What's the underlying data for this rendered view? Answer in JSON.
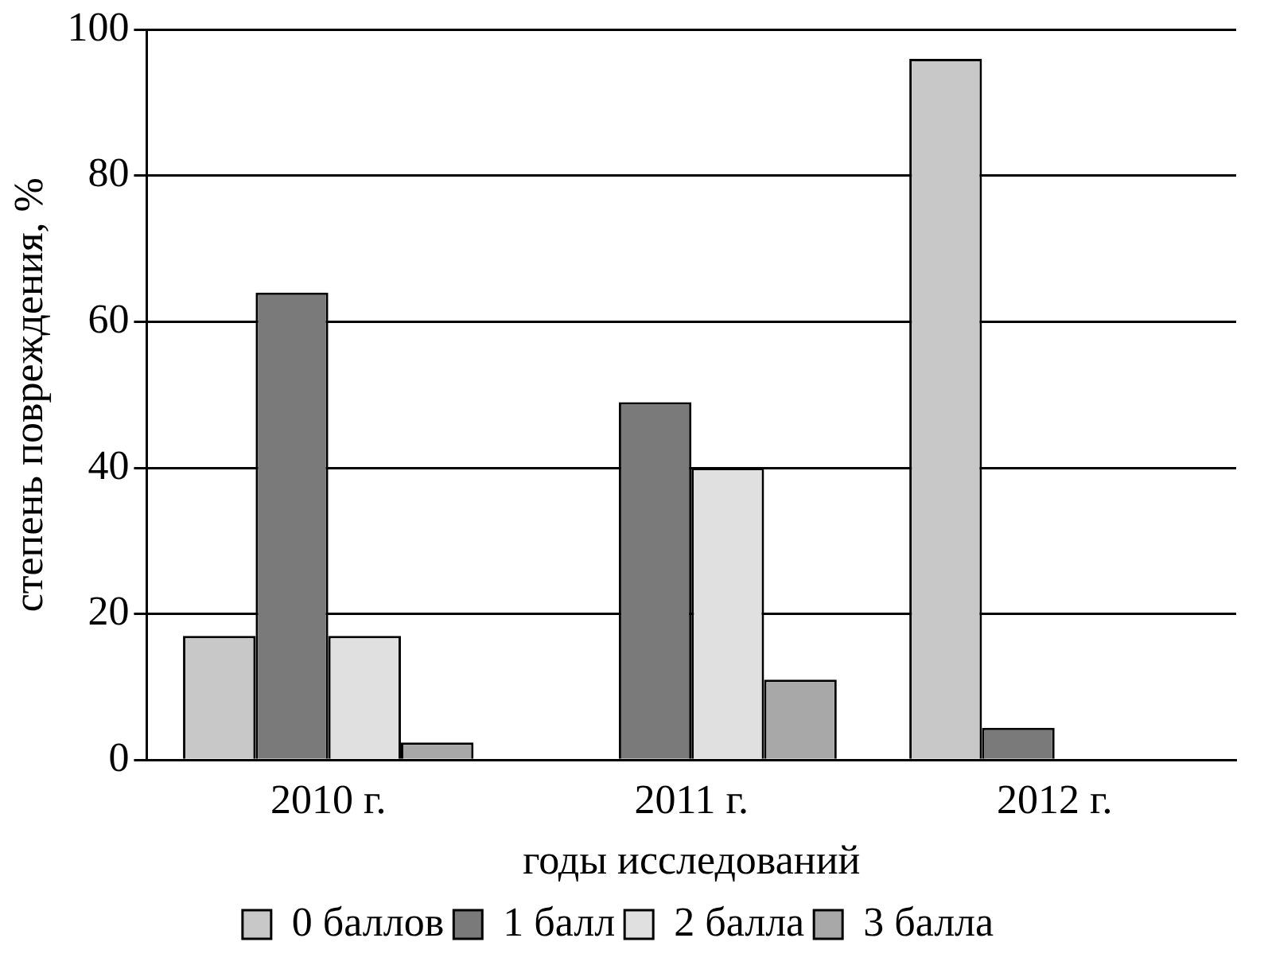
{
  "chart_data": {
    "type": "bar",
    "xlabel": "годы исследований",
    "ylabel": "степень повреждения, %",
    "categories": [
      "2010 г.",
      "2011 г.",
      "2012 г."
    ],
    "series": [
      {
        "name": "0 баллов",
        "color": "#c8c8c8",
        "values": [
          17,
          0,
          96
        ]
      },
      {
        "name": "1 балл",
        "color": "#7a7a7a",
        "values": [
          64,
          49,
          4.4
        ]
      },
      {
        "name": "2 балла",
        "color": "#e0e0e0",
        "values": [
          17,
          40,
          0
        ]
      },
      {
        "name": "3 балла",
        "color": "#a8a8a8",
        "values": [
          2.4,
          11,
          0
        ]
      }
    ],
    "ylim": [
      0,
      100
    ],
    "yticks": [
      0,
      20,
      40,
      60,
      80,
      100
    ],
    "grid": "y",
    "legend": "bottom"
  }
}
